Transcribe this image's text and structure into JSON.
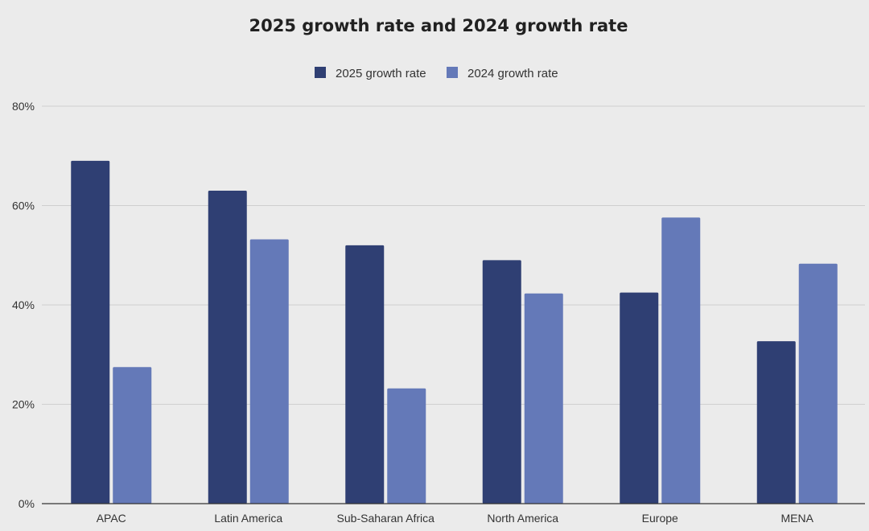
{
  "chart_data": {
    "type": "bar",
    "title": "2025 growth rate and 2024 growth rate",
    "categories": [
      "APAC",
      "Latin America",
      "Sub-Saharan Africa",
      "North America",
      "Europe",
      "MENA"
    ],
    "series": [
      {
        "name": "2025 growth rate",
        "color": "#2f3f73",
        "values": [
          69,
          63,
          52,
          49,
          42.5,
          32.7
        ]
      },
      {
        "name": "2024 growth rate",
        "color": "#6479b8",
        "values": [
          27.5,
          53.2,
          23.2,
          42.3,
          57.6,
          48.3
        ]
      }
    ],
    "xlabel": "",
    "ylabel": "",
    "ylim": [
      0,
      80
    ],
    "yticks": [
      0,
      20,
      40,
      60,
      80
    ],
    "ytick_labels": [
      "0%",
      "20%",
      "40%",
      "60%",
      "80%"
    ],
    "grid": true,
    "legend_position": "top-center"
  }
}
